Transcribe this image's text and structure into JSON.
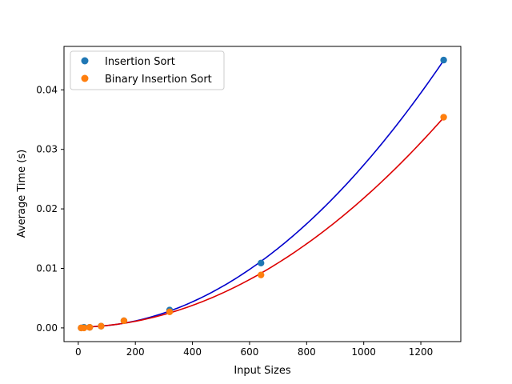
{
  "chart_data": {
    "type": "scatter",
    "xlabel": "Input Sizes",
    "ylabel": "Average Time (s)",
    "xlim": [
      -50,
      1340
    ],
    "ylim": [
      -0.0023,
      0.0473
    ],
    "xticks": [
      0,
      200,
      400,
      600,
      800,
      1000,
      1200
    ],
    "yticks": [
      0.0,
      0.01,
      0.02,
      0.03,
      0.04
    ],
    "xtick_labels": [
      "0",
      "200",
      "400",
      "600",
      "800",
      "1000",
      "1200"
    ],
    "ytick_labels": [
      "0.00",
      "0.01",
      "0.02",
      "0.03",
      "0.04"
    ],
    "grid": false,
    "legend_position": "top-left",
    "series": [
      {
        "name": "Insertion Sort",
        "color": "#1f77b4",
        "fit_color": "#0000cc",
        "x": [
          10,
          20,
          40,
          80,
          160,
          320,
          640,
          1280
        ],
        "y": [
          0.0,
          0.0001,
          0.0001,
          0.0003,
          0.0012,
          0.003,
          0.0109,
          0.045
        ],
        "fit": "quadratic"
      },
      {
        "name": "Binary Insertion Sort",
        "color": "#ff7f0e",
        "fit_color": "#dd0000",
        "x": [
          10,
          20,
          40,
          80,
          160,
          320,
          640,
          1280
        ],
        "y": [
          0.0,
          0.0,
          0.0001,
          0.0003,
          0.0012,
          0.0027,
          0.0089,
          0.0354
        ],
        "fit": "quadratic"
      }
    ]
  }
}
